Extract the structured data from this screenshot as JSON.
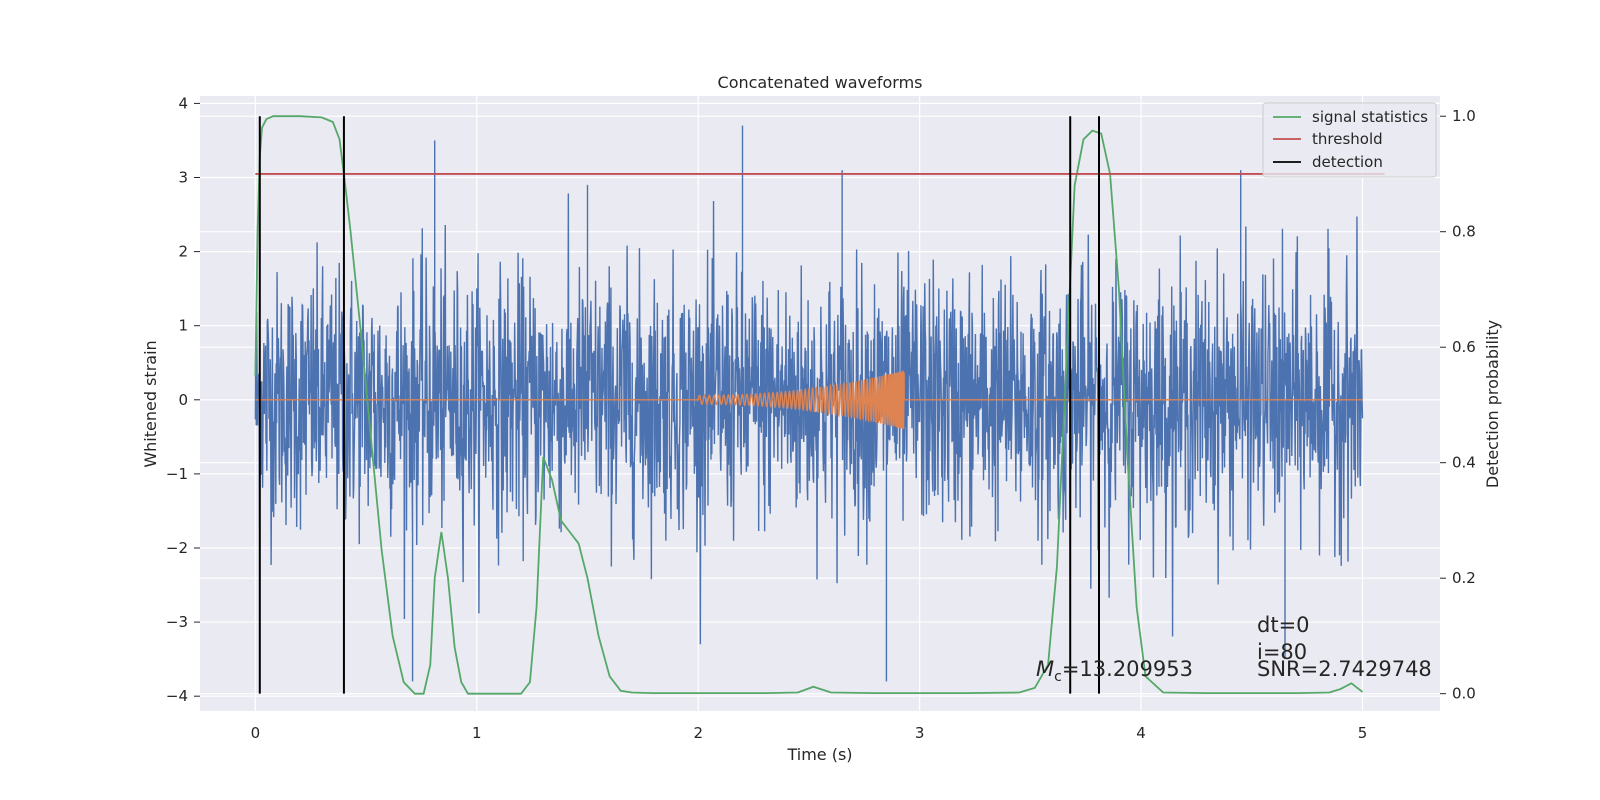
{
  "chart_data": {
    "type": "line",
    "title": "Concatenated waveforms",
    "xlabel": "Time (s)",
    "ylabel": "Whitened strain",
    "y2label": "Detection probability",
    "xlim": [
      -0.25,
      5.35
    ],
    "ylim": [
      -4.2,
      4.1
    ],
    "y2lim": [
      -0.03,
      1.035
    ],
    "xticks": [
      0,
      1,
      2,
      3,
      4,
      5
    ],
    "xtick_labels": [
      "0",
      "1",
      "2",
      "3",
      "4",
      "5"
    ],
    "yticks": [
      -4,
      -3,
      -2,
      -1,
      0,
      1,
      2,
      3,
      4
    ],
    "ytick_labels": [
      "−4",
      "−3",
      "−2",
      "−1",
      "0",
      "1",
      "2",
      "3",
      "4"
    ],
    "y2ticks": [
      0.0,
      0.2,
      0.4,
      0.6,
      0.8,
      1.0
    ],
    "y2tick_labels": [
      "0.0",
      "0.2",
      "0.4",
      "0.6",
      "0.8",
      "1.0"
    ],
    "grid": true,
    "legend_position": "top-right",
    "colors": {
      "strain": "#4c72b0",
      "waveform": "#dd8452",
      "signal_statistics": "#55a868",
      "threshold": "#c44e52",
      "detection": "#000000",
      "background": "#eaeaf2"
    },
    "series": [
      {
        "key": "strain",
        "axis": "left",
        "description_x_range": [
          0,
          5
        ],
        "noise_sigma": 0.85,
        "notable_peaks": [
          {
            "x": 0.81,
            "y": 3.5
          },
          {
            "x": 1.5,
            "y": 2.9
          },
          {
            "x": 2.2,
            "y": 3.7
          },
          {
            "x": 2.65,
            "y": 3.1
          },
          {
            "x": 4.45,
            "y": 3.1
          },
          {
            "x": 0.71,
            "y": -3.8
          },
          {
            "x": 2.85,
            "y": -3.8
          },
          {
            "x": 4.65,
            "y": -3.5
          }
        ]
      },
      {
        "key": "waveform",
        "axis": "left",
        "chirp_start": 2.0,
        "chirp_end": 2.93,
        "peak_amplitude": 0.4
      },
      {
        "key": "signal_statistics",
        "name": "signal statistics",
        "axis": "right",
        "x": [
          0.0,
          0.01,
          0.02,
          0.03,
          0.05,
          0.08,
          0.12,
          0.2,
          0.3,
          0.35,
          0.38,
          0.4,
          0.43,
          0.47,
          0.52,
          0.57,
          0.62,
          0.67,
          0.72,
          0.76,
          0.79,
          0.81,
          0.84,
          0.87,
          0.9,
          0.93,
          0.96,
          1.0,
          1.1,
          1.2,
          1.24,
          1.27,
          1.3,
          1.34,
          1.38,
          1.42,
          1.46,
          1.5,
          1.55,
          1.6,
          1.65,
          1.7,
          1.8,
          2.0,
          2.3,
          2.45,
          2.52,
          2.6,
          2.8,
          3.2,
          3.45,
          3.52,
          3.58,
          3.62,
          3.66,
          3.7,
          3.74,
          3.78,
          3.82,
          3.86,
          3.9,
          3.94,
          3.98,
          4.02,
          4.1,
          4.3,
          4.7,
          4.85,
          4.9,
          4.95,
          5.0
        ],
        "y": [
          0.55,
          0.8,
          0.93,
          0.98,
          0.995,
          1.0,
          1.0,
          1.0,
          0.998,
          0.99,
          0.96,
          0.9,
          0.8,
          0.65,
          0.45,
          0.25,
          0.1,
          0.02,
          0.0,
          0.0,
          0.05,
          0.2,
          0.28,
          0.2,
          0.08,
          0.02,
          0.0,
          0.0,
          0.0,
          0.0,
          0.02,
          0.15,
          0.41,
          0.37,
          0.3,
          0.28,
          0.26,
          0.2,
          0.1,
          0.03,
          0.005,
          0.002,
          0.001,
          0.001,
          0.001,
          0.002,
          0.012,
          0.002,
          0.001,
          0.001,
          0.002,
          0.01,
          0.05,
          0.22,
          0.55,
          0.88,
          0.96,
          0.975,
          0.97,
          0.9,
          0.7,
          0.4,
          0.15,
          0.03,
          0.002,
          0.001,
          0.001,
          0.002,
          0.008,
          0.018,
          0.003
        ]
      },
      {
        "key": "threshold",
        "name": "threshold",
        "axis": "right",
        "x": [
          0.0,
          5.1
        ],
        "y": [
          0.9,
          0.9
        ]
      },
      {
        "key": "detection",
        "name": "detection",
        "axis": "right",
        "vlines": [
          0.02,
          0.4,
          3.68,
          3.81
        ],
        "ymin": 0.0,
        "ymax": 1.0
      }
    ],
    "annotations": {
      "mc_symbol": "M",
      "mc_subscript": "c",
      "mc_value": "=13.209953",
      "dt": "dt=0",
      "i": "i=80",
      "snr": "SNR=2.7429748"
    }
  }
}
